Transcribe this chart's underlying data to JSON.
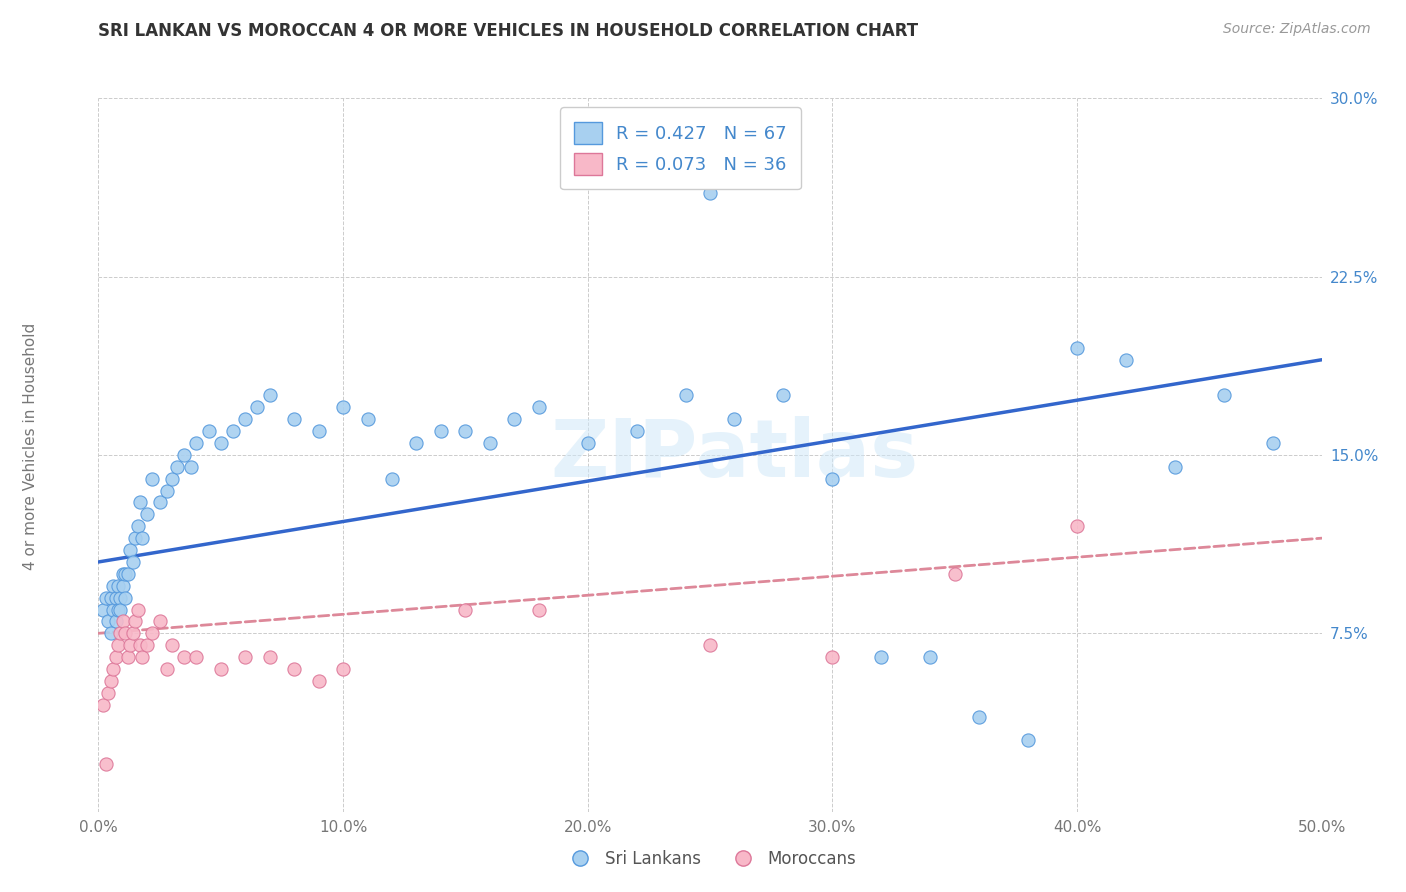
{
  "title": "SRI LANKAN VS MOROCCAN 4 OR MORE VEHICLES IN HOUSEHOLD CORRELATION CHART",
  "source": "Source: ZipAtlas.com",
  "ylabel": "4 or more Vehicles in Household",
  "xlim": [
    0.0,
    0.5
  ],
  "ylim": [
    0.0,
    0.3
  ],
  "xticks": [
    0.0,
    0.1,
    0.2,
    0.3,
    0.4,
    0.5
  ],
  "yticks": [
    0.0,
    0.075,
    0.15,
    0.225,
    0.3
  ],
  "xticklabels": [
    "0.0%",
    "10.0%",
    "20.0%",
    "30.0%",
    "40.0%",
    "50.0%"
  ],
  "yticklabels": [
    "",
    "7.5%",
    "15.0%",
    "22.5%",
    "30.0%"
  ],
  "sri_lankan_R": 0.427,
  "sri_lankan_N": 67,
  "moroccan_R": 0.073,
  "moroccan_N": 36,
  "sri_lankan_color": "#a8d0f0",
  "moroccan_color": "#f8b8c8",
  "sri_lankan_edge_color": "#5599dd",
  "moroccan_edge_color": "#dd7799",
  "sri_lankan_line_color": "#3366cc",
  "moroccan_line_color": "#dd8899",
  "tick_color": "#4488cc",
  "watermark": "ZIPatlas",
  "sl_line_x0": 0.0,
  "sl_line_y0": 0.105,
  "sl_line_x1": 0.5,
  "sl_line_y1": 0.19,
  "mo_line_x0": 0.0,
  "mo_line_y0": 0.075,
  "mo_line_x1": 0.5,
  "mo_line_y1": 0.115,
  "sl_x": [
    0.002,
    0.003,
    0.004,
    0.005,
    0.005,
    0.006,
    0.006,
    0.007,
    0.007,
    0.008,
    0.008,
    0.009,
    0.009,
    0.01,
    0.01,
    0.011,
    0.011,
    0.012,
    0.013,
    0.014,
    0.015,
    0.016,
    0.017,
    0.018,
    0.02,
    0.022,
    0.025,
    0.028,
    0.03,
    0.032,
    0.035,
    0.038,
    0.04,
    0.045,
    0.05,
    0.055,
    0.06,
    0.065,
    0.07,
    0.08,
    0.09,
    0.1,
    0.11,
    0.12,
    0.13,
    0.14,
    0.15,
    0.16,
    0.17,
    0.18,
    0.2,
    0.22,
    0.24,
    0.26,
    0.28,
    0.3,
    0.32,
    0.34,
    0.36,
    0.38,
    0.4,
    0.42,
    0.44,
    0.46,
    0.48,
    0.2,
    0.25
  ],
  "sl_y": [
    0.085,
    0.09,
    0.08,
    0.075,
    0.09,
    0.085,
    0.095,
    0.08,
    0.09,
    0.085,
    0.095,
    0.09,
    0.085,
    0.1,
    0.095,
    0.09,
    0.1,
    0.1,
    0.11,
    0.105,
    0.115,
    0.12,
    0.13,
    0.115,
    0.125,
    0.14,
    0.13,
    0.135,
    0.14,
    0.145,
    0.15,
    0.145,
    0.155,
    0.16,
    0.155,
    0.16,
    0.165,
    0.17,
    0.175,
    0.165,
    0.16,
    0.17,
    0.165,
    0.14,
    0.155,
    0.16,
    0.16,
    0.155,
    0.165,
    0.17,
    0.155,
    0.16,
    0.175,
    0.165,
    0.175,
    0.14,
    0.065,
    0.065,
    0.04,
    0.03,
    0.195,
    0.19,
    0.145,
    0.175,
    0.155,
    0.29,
    0.26
  ],
  "mo_x": [
    0.002,
    0.003,
    0.004,
    0.005,
    0.006,
    0.007,
    0.008,
    0.009,
    0.01,
    0.011,
    0.012,
    0.013,
    0.014,
    0.015,
    0.016,
    0.017,
    0.018,
    0.02,
    0.022,
    0.025,
    0.028,
    0.03,
    0.035,
    0.04,
    0.05,
    0.06,
    0.07,
    0.08,
    0.09,
    0.1,
    0.15,
    0.18,
    0.25,
    0.3,
    0.35,
    0.4
  ],
  "mo_y": [
    0.045,
    0.02,
    0.05,
    0.055,
    0.06,
    0.065,
    0.07,
    0.075,
    0.08,
    0.075,
    0.065,
    0.07,
    0.075,
    0.08,
    0.085,
    0.07,
    0.065,
    0.07,
    0.075,
    0.08,
    0.06,
    0.07,
    0.065,
    0.065,
    0.06,
    0.065,
    0.065,
    0.06,
    0.055,
    0.06,
    0.085,
    0.085,
    0.07,
    0.065,
    0.1,
    0.12
  ]
}
